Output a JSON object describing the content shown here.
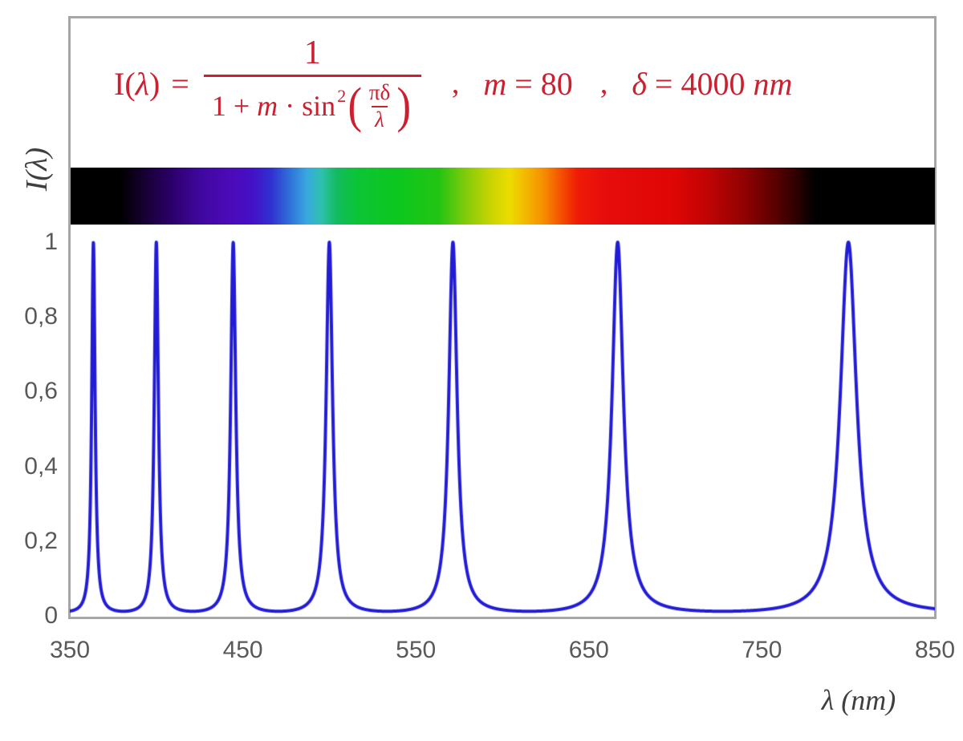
{
  "chart_data": {
    "type": "line",
    "title_formula": "I(λ) = 1 / (1 + m·sin²(πδ/λ))  ,  m = 80  ,  δ = 4000 nm",
    "xlabel": "λ  (nm)",
    "ylabel": "I(λ)",
    "xlim": [
      350,
      850
    ],
    "ylim": [
      0,
      1
    ],
    "x_tick_values": [
      350,
      450,
      550,
      650,
      750,
      850
    ],
    "x_tick_labels": [
      "350",
      "450",
      "550",
      "650",
      "750",
      "850"
    ],
    "y_tick_values": [
      1,
      0.8,
      0.6,
      0.4,
      0.2,
      0
    ],
    "y_tick_labels": [
      "1",
      "0,8",
      "0,6",
      "0,4",
      "0,2",
      "0"
    ],
    "grid": false,
    "legend": false,
    "series": [
      {
        "name": "I(λ)",
        "formula_params": {
          "m": 80,
          "delta_nm": 4000
        },
        "sample_step_nm": 0.1,
        "color": "#221cd6",
        "line_width": 4
      }
    ],
    "peaks_nm": [
      363.6,
      400,
      444.4,
      500,
      571.4,
      666.7,
      800
    ],
    "spectrum_bar": {
      "range_nm": [
        350,
        850
      ],
      "stops": [
        {
          "nm": 350,
          "c": "#000000"
        },
        {
          "nm": 379,
          "c": "#000000"
        },
        {
          "nm": 392,
          "c": "#15002f"
        },
        {
          "nm": 408,
          "c": "#2b0068"
        },
        {
          "nm": 425,
          "c": "#3f079e"
        },
        {
          "nm": 442,
          "c": "#4c0ab8"
        },
        {
          "nm": 455,
          "c": "#4410c6"
        },
        {
          "nm": 466,
          "c": "#3030d0"
        },
        {
          "nm": 477,
          "c": "#2f72d8"
        },
        {
          "nm": 487,
          "c": "#38aadf"
        },
        {
          "nm": 495,
          "c": "#2fc0ae"
        },
        {
          "nm": 504,
          "c": "#12bb5e"
        },
        {
          "nm": 515,
          "c": "#0bc437"
        },
        {
          "nm": 540,
          "c": "#0dc71d"
        },
        {
          "nm": 563,
          "c": "#23c413"
        },
        {
          "nm": 578,
          "c": "#7ecb0a"
        },
        {
          "nm": 593,
          "c": "#c9d403"
        },
        {
          "nm": 604,
          "c": "#ecdc00"
        },
        {
          "nm": 614,
          "c": "#f4b500"
        },
        {
          "nm": 624,
          "c": "#f68c00"
        },
        {
          "nm": 633,
          "c": "#f45500"
        },
        {
          "nm": 643,
          "c": "#ef1c06"
        },
        {
          "nm": 658,
          "c": "#e60d0d"
        },
        {
          "nm": 700,
          "c": "#de0505"
        },
        {
          "nm": 718,
          "c": "#c10404"
        },
        {
          "nm": 738,
          "c": "#950202"
        },
        {
          "nm": 757,
          "c": "#5c0000"
        },
        {
          "nm": 772,
          "c": "#250000"
        },
        {
          "nm": 780,
          "c": "#000000"
        },
        {
          "nm": 850,
          "c": "#000000"
        }
      ]
    }
  },
  "formula": {
    "color": "#cc1f30",
    "lhs_i": "I(",
    "lhs_lambda": "λ",
    "lhs_close": ")",
    "equals": "=",
    "numerator": "1",
    "den_pre": "1 + ",
    "den_m": "m",
    "den_dot": " · ",
    "den_sin": "sin",
    "den_sup": "2",
    "open_paren": "(",
    "close_paren": ")",
    "inner_num": "πδ",
    "inner_den": "λ",
    "comma": ",",
    "m_var": "m",
    "m_rest": " = 80",
    "delta_var": "δ",
    "delta_rest": " = 4000 ",
    "delta_unit": "nm"
  },
  "axis_style": {
    "tick_color": "#595959",
    "title_color": "#3f3f3f",
    "frame_color": "#a6a6a6"
  }
}
